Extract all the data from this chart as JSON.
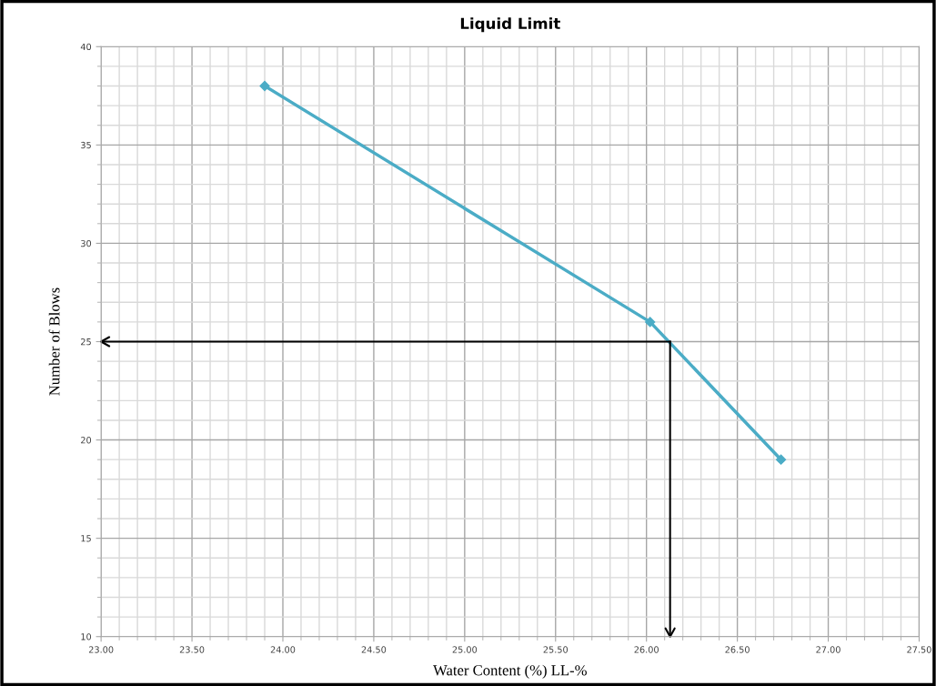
{
  "chart_data": {
    "type": "line",
    "title": "Liquid Limit",
    "xlabel": "Water Content (%) LL-%",
    "ylabel": "Number of Blows",
    "x": [
      23.9,
      26.02,
      26.74
    ],
    "series": [
      {
        "color": "#4bacc6",
        "values": [
          38,
          26,
          19
        ]
      }
    ],
    "marker": "diamond",
    "line_style": "solid",
    "grid": true,
    "xlim": [
      23,
      27.5
    ],
    "ylim": [
      10,
      40
    ],
    "xticks": [
      {
        "value": 23,
        "label": "23.00"
      },
      {
        "value": 23.5,
        "label": "23.50"
      },
      {
        "value": 24,
        "label": "24.00"
      },
      {
        "value": 24.5,
        "label": "24.50"
      },
      {
        "value": 25,
        "label": "25.00"
      },
      {
        "value": 25.5,
        "label": "25.50"
      },
      {
        "value": 26,
        "label": "26.00"
      },
      {
        "value": 26.5,
        "label": "26.50"
      },
      {
        "value": 27,
        "label": "27.00"
      },
      {
        "value": 27.5,
        "label": "27.50"
      }
    ],
    "yticks": [
      10,
      15,
      20,
      25,
      30,
      35,
      40
    ],
    "ref_lines": [
      {
        "axis": "y",
        "value": 25,
        "color": "#000000"
      },
      {
        "axis": "x",
        "value": 26.13,
        "color": "#000000"
      }
    ]
  }
}
